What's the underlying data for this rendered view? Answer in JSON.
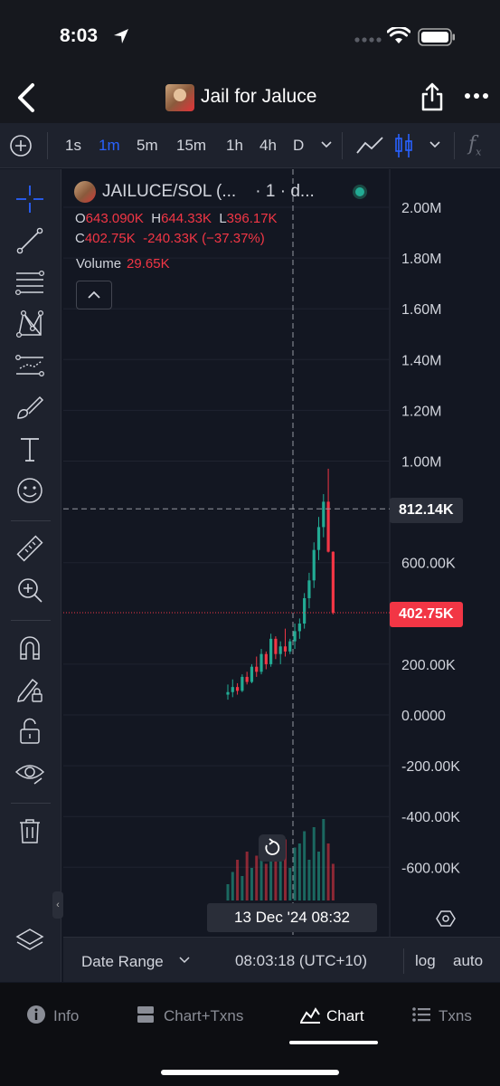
{
  "status_bar": {
    "time": "8:03"
  },
  "header": {
    "title": "Jail for Jaluce"
  },
  "toolbar": {
    "timeframes": [
      "1s",
      "1m",
      "5m",
      "15m",
      "1h",
      "4h",
      "D"
    ],
    "active_timeframe": "1m",
    "fx_label": "f"
  },
  "legend": {
    "symbol": "JAILUCE/SOL (...",
    "interval": "· 1 · d...",
    "ohlc_row1": [
      {
        "k": "O",
        "v": "643.090K"
      },
      {
        "k": "H",
        "v": "644.33K"
      },
      {
        "k": "L",
        "v": "396.17K"
      }
    ],
    "ohlc_row2": [
      {
        "k": "C",
        "v": "402.75K"
      },
      {
        "k": "",
        "v": "-240.33K (−37.37%)"
      }
    ],
    "volume_label": "Volume",
    "volume_value": "29.65K"
  },
  "chart_data": {
    "type": "candlestick",
    "title": "JAILUCE/SOL",
    "y_axis_labels": [
      "2.00M",
      "1.80M",
      "1.60M",
      "1.40M",
      "1.20M",
      "1.00M",
      "600.00K",
      "200.00K",
      "0.0000",
      "-200.00K",
      "-400.00K",
      "-600.00K"
    ],
    "y_axis_values": [
      2000000,
      1800000,
      1600000,
      1400000,
      1200000,
      1000000,
      600000,
      200000,
      0,
      -200000,
      -400000,
      -600000
    ],
    "ylim": [
      -700000,
      2050000
    ],
    "crosshair_price": "812.14K",
    "crosshair_value": 812140,
    "last_price": "402.75K",
    "last_value": 402750,
    "crosshair_date": "13 Dec '24   08:32",
    "candles": [
      [
        80000,
        120000,
        60000,
        90000
      ],
      [
        90000,
        140000,
        70000,
        110000
      ],
      [
        110000,
        125000,
        80000,
        95000
      ],
      [
        95000,
        160000,
        90000,
        150000
      ],
      [
        150000,
        170000,
        120000,
        130000
      ],
      [
        130000,
        200000,
        125000,
        190000
      ],
      [
        190000,
        230000,
        150000,
        170000
      ],
      [
        170000,
        260000,
        160000,
        240000
      ],
      [
        240000,
        250000,
        180000,
        200000
      ],
      [
        200000,
        320000,
        190000,
        300000
      ],
      [
        300000,
        310000,
        220000,
        240000
      ],
      [
        240000,
        290000,
        200000,
        270000
      ],
      [
        270000,
        340000,
        230000,
        250000
      ],
      [
        250000,
        300000,
        240000,
        290000
      ],
      [
        290000,
        360000,
        260000,
        330000
      ],
      [
        330000,
        380000,
        300000,
        360000
      ],
      [
        360000,
        480000,
        340000,
        460000
      ],
      [
        460000,
        560000,
        420000,
        530000
      ],
      [
        530000,
        680000,
        500000,
        650000
      ],
      [
        650000,
        780000,
        610000,
        740000
      ],
      [
        740000,
        870000,
        700000,
        840000
      ],
      [
        840000,
        970000,
        640000,
        643000
      ],
      [
        643000,
        644330,
        396170,
        402750
      ]
    ],
    "volume": [
      0.2,
      0.35,
      0.5,
      0.3,
      0.6,
      0.4,
      0.55,
      0.7,
      0.45,
      0.8,
      0.5,
      0.6,
      0.75,
      0.4,
      0.65,
      0.7,
      0.85,
      0.5,
      0.9,
      0.6,
      1.0,
      0.7,
      0.45
    ]
  },
  "footer": {
    "date_range": "Date Range",
    "clock": "08:03:18 (UTC+10)",
    "log": "log",
    "auto": "auto"
  },
  "tabs": [
    {
      "label": "Info",
      "icon": "info-icon"
    },
    {
      "label": "Chart+Txns",
      "icon": "split-icon"
    },
    {
      "label": "Chart",
      "icon": "chart-icon"
    },
    {
      "label": "Txns",
      "icon": "list-icon"
    }
  ],
  "colors": {
    "up": "#22ab94",
    "down": "#f23645",
    "accent": "#2962ff"
  }
}
